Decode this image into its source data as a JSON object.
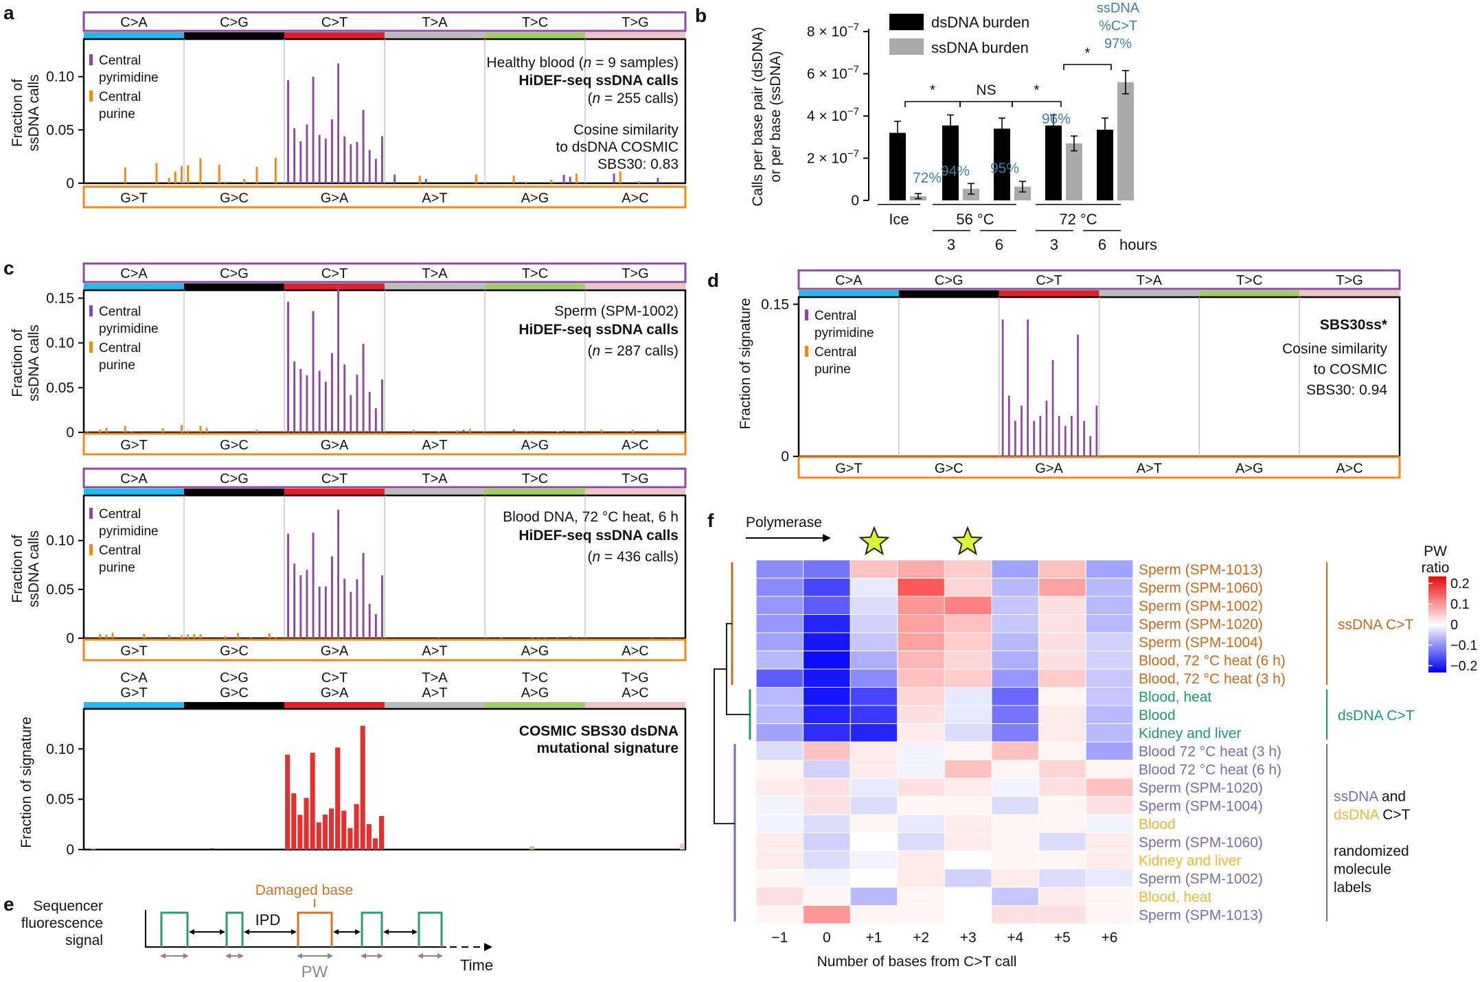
{
  "colors": {
    "purple": "#8d49a0",
    "orange": "#ee8a1a",
    "red": "#e53030",
    "blue_t": "#3b7ea8",
    "C>A": "#1ebbee",
    "C>G": "#000000",
    "C>T": "#e41e26",
    "T>A": "#bcbcbc",
    "T>C": "#a1cf63",
    "T>G": "#eec5c6",
    "ss_label": "#c8681a",
    "ds_label": "#1c9b6c",
    "rand_label": "#7a6aac",
    "dsrand_label": "#f2b632"
  },
  "common": {
    "top_classes": [
      "C>A",
      "C>G",
      "C>T",
      "T>A",
      "T>C",
      "T>G"
    ],
    "bottom_classes": [
      "G>T",
      "G>C",
      "G>A",
      "A>T",
      "A>G",
      "A>C"
    ],
    "legend": [
      "Central",
      "pyrimidine",
      "Central",
      "purine"
    ]
  },
  "panel_a": {
    "letter": "a",
    "ylabel": [
      "Fraction of",
      "ssDNA calls"
    ],
    "yticks": [
      "0",
      "0.05",
      "0.10"
    ],
    "text": {
      "title_pre": "Healthy blood (",
      "title_n": "n",
      "title_post": " = 9 samples)",
      "bold": "HiDEF-seq ssDNA calls",
      "count_pre": "(",
      "count_n": "n",
      "count_post": " = 255 calls)",
      "cos": [
        "Cosine similarity",
        "to dsDNA COSMIC",
        "SBS30: 0.83"
      ]
    }
  },
  "panel_b": {
    "letter": "b",
    "ylabel": [
      "Calls per base pair (dsDNA)",
      "or per base (ssDNA)"
    ],
    "yticks": [
      "0",
      "2 × 10",
      "4 × 10",
      "6 × 10",
      "8 × 10"
    ],
    "yexp": "−7",
    "legend": [
      "dsDNA burden",
      "ssDNA burden"
    ],
    "groups": [
      "Ice",
      "56 °C",
      "72 °C"
    ],
    "hours": [
      "3",
      "6",
      "3",
      "6",
      "hours"
    ],
    "pct": [
      "72%",
      "94%",
      "95%",
      "96%"
    ],
    "top_note": [
      "ssDNA",
      "%C>T",
      "97%"
    ],
    "sig": [
      "*",
      "NS",
      "*",
      "*"
    ],
    "chart_data": {
      "type": "bar",
      "categories": [
        "Ice",
        "56 °C 3 h",
        "56 °C 6 h",
        "72 °C 3 h",
        "72 °C 6 h"
      ],
      "series": [
        {
          "name": "dsDNA burden",
          "values": [
            3.2e-07,
            3.55e-07,
            3.4e-07,
            3.55e-07,
            3.35e-07
          ],
          "errors": [
            5.5e-08,
            5e-08,
            5e-08,
            5e-08,
            5.5e-08
          ]
        },
        {
          "name": "ssDNA burden",
          "values": [
            2e-08,
            5.5e-08,
            6.5e-08,
            2.7e-07,
            5.6e-07
          ],
          "errors": [
            1.2e-08,
            2.5e-08,
            2.5e-08,
            3.5e-08,
            5.5e-08
          ]
        }
      ],
      "ylim": [
        0,
        8e-07
      ]
    }
  },
  "panel_c": {
    "letter": "c",
    "ylabel": [
      "Fraction of",
      "ssDNA calls"
    ],
    "yticks": [
      "0",
      "0.05",
      "0.10",
      "0.15"
    ],
    "text": {
      "title": "Sperm (SPM-1002)",
      "bold": "HiDEF-seq ssDNA calls",
      "count_pre": "(",
      "count_n": "n",
      "count_post": " = 287 calls)"
    }
  },
  "panel_c2": {
    "ylabel": [
      "Fraction of",
      "ssDNA calls"
    ],
    "yticks": [
      "0",
      "0.05",
      "0.10"
    ],
    "text": {
      "title": "Blood DNA, 72 °C heat, 6 h",
      "bold": "HiDEF-seq ssDNA calls",
      "count_pre": "(",
      "count_n": "n",
      "count_post": " = 436 calls)"
    }
  },
  "panel_c3": {
    "ylabel": "Fraction of signature",
    "yticks": [
      "0",
      "0.05",
      "0.10"
    ],
    "labels_top": [
      "C>A",
      "C>G",
      "C>T",
      "T>A",
      "T>C",
      "T>G"
    ],
    "labels_bot": [
      "G>T",
      "G>C",
      "G>A",
      "A>T",
      "A>G",
      "A>C"
    ],
    "bold": [
      "COSMIC SBS30 dsDNA",
      "mutational signature"
    ]
  },
  "panel_d": {
    "letter": "d",
    "ylabel": "Fraction of signature",
    "yticks": [
      "0",
      "0.15"
    ],
    "bold": "SBS30ss*",
    "cos": [
      "Cosine similarity",
      "to COSMIC",
      "SBS30: 0.94"
    ]
  },
  "panel_e": {
    "letter": "e",
    "ylabel": [
      "Sequencer",
      "fluorescence",
      "signal"
    ],
    "damaged": "Damaged base",
    "ipd": "IPD",
    "pw": "PW",
    "time": "Time"
  },
  "panel_f": {
    "letter": "f",
    "polymerase": "Polymerase",
    "xticks": [
      "−1",
      "0",
      "+1",
      "+2",
      "+3",
      "+4",
      "+5",
      "+6"
    ],
    "xlabel": "Number of bases from C>T call",
    "cbar_title": [
      "PW",
      "ratio"
    ],
    "cbar_ticks": [
      "0.2",
      "0.1",
      "0",
      "−0.1",
      "−0.2"
    ],
    "rows": [
      {
        "label": "Sperm (SPM-1013)",
        "group": "ss",
        "values": [
          -0.1,
          -0.12,
          0.06,
          0.08,
          0.05,
          -0.08,
          0.06,
          -0.08
        ]
      },
      {
        "label": "Sperm (SPM-1060)",
        "group": "ss",
        "values": [
          -0.1,
          -0.16,
          -0.02,
          0.16,
          0.04,
          -0.06,
          0.09,
          -0.06
        ]
      },
      {
        "label": "Sperm (SPM-1002)",
        "group": "ss",
        "values": [
          -0.09,
          -0.14,
          -0.03,
          0.1,
          0.12,
          -0.05,
          0.03,
          -0.06
        ]
      },
      {
        "label": "Sperm (SPM-1020)",
        "group": "ss",
        "values": [
          -0.09,
          -0.19,
          -0.04,
          0.09,
          0.06,
          -0.05,
          0.03,
          -0.06
        ]
      },
      {
        "label": "Sperm (SPM-1004)",
        "group": "ss",
        "values": [
          -0.08,
          -0.2,
          -0.05,
          0.09,
          0.05,
          -0.06,
          0.03,
          -0.04
        ]
      },
      {
        "label": "Blood, 72 °C heat (6 h)",
        "group": "ss",
        "values": [
          -0.06,
          -0.21,
          -0.07,
          0.07,
          0.04,
          -0.07,
          0.03,
          -0.04
        ]
      },
      {
        "label": "Blood, 72 °C heat (3 h)",
        "group": "ss",
        "values": [
          -0.14,
          -0.2,
          -0.1,
          0.06,
          0.05,
          -0.09,
          0.05,
          -0.05
        ]
      },
      {
        "label": "Blood, heat",
        "group": "ds",
        "values": [
          -0.06,
          -0.2,
          -0.16,
          0.04,
          -0.02,
          -0.13,
          0.01,
          -0.05
        ]
      },
      {
        "label": "Blood",
        "group": "ds",
        "values": [
          -0.06,
          -0.19,
          -0.17,
          0.03,
          -0.02,
          -0.12,
          0.02,
          -0.06
        ]
      },
      {
        "label": "Kidney and liver",
        "group": "ds",
        "values": [
          -0.08,
          -0.18,
          -0.19,
          0.02,
          -0.03,
          -0.11,
          0.02,
          -0.06
        ]
      },
      {
        "label": "Blood 72 °C heat (3 h)",
        "group": "rand",
        "values": [
          -0.03,
          0.06,
          0.02,
          -0.01,
          0.01,
          0.06,
          0.01,
          -0.08
        ]
      },
      {
        "label": "Blood 72 °C heat (6 h)",
        "group": "rand",
        "values": [
          0.01,
          -0.04,
          0.02,
          -0.01,
          0.06,
          0.01,
          0.04,
          0.01
        ]
      },
      {
        "label": "Sperm (SPM-1020)",
        "group": "rand",
        "values": [
          0.02,
          0.03,
          -0.02,
          0.03,
          0.02,
          -0.01,
          0.03,
          0.06
        ]
      },
      {
        "label": "Sperm (SPM-1004)",
        "group": "rand",
        "values": [
          -0.01,
          0.03,
          -0.03,
          0.01,
          0.01,
          -0.03,
          0.01,
          0.03
        ]
      },
      {
        "label": "Blood",
        "group": "dsrand",
        "values": [
          -0.01,
          -0.03,
          0.01,
          -0.02,
          0.02,
          0.01,
          0.01,
          -0.01
        ]
      },
      {
        "label": "Sperm (SPM-1060)",
        "group": "rand",
        "values": [
          0.02,
          -0.04,
          0.0,
          -0.03,
          0.02,
          0.01,
          -0.03,
          0.02
        ]
      },
      {
        "label": "Kidney and liver",
        "group": "dsrand",
        "values": [
          0.02,
          -0.03,
          -0.01,
          0.02,
          0.0,
          0.01,
          0.01,
          0.02
        ]
      },
      {
        "label": "Sperm (SPM-1002)",
        "group": "rand",
        "values": [
          0.01,
          -0.01,
          0.0,
          0.02,
          -0.04,
          0.02,
          -0.03,
          -0.02
        ]
      },
      {
        "label": "Blood, heat",
        "group": "dsrand",
        "values": [
          0.03,
          0.01,
          -0.06,
          0.01,
          0.0,
          -0.05,
          0.02,
          0.01
        ]
      },
      {
        "label": "Sperm (SPM-1013)",
        "group": "rand",
        "values": [
          0.01,
          0.1,
          0.01,
          0.01,
          0.0,
          0.03,
          0.03,
          0.01
        ]
      }
    ],
    "group_labels": {
      "ss": "ssDNA C>T",
      "ds": "dsDNA C>T"
    },
    "rand_label": {
      "a": "ssDNA",
      "b": " and",
      "c": "dsDNA",
      "d": " C>T",
      "e": [
        "randomized",
        "molecule",
        "labels"
      ]
    }
  }
}
